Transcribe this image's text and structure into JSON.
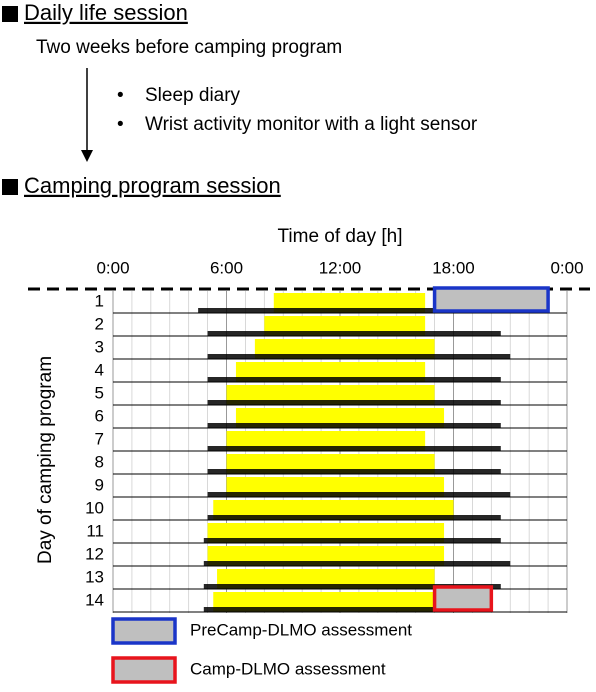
{
  "header": {
    "daily_title": "Daily life session",
    "daily_subtitle": "Two weeks before camping program",
    "bullets": [
      "Sleep diary",
      "Wrist activity monitor with a light sensor"
    ],
    "camp_title": "Camping program session"
  },
  "chart_data": {
    "type": "actogram",
    "title": "Time of day [h]",
    "ylabel": "Day of camping program",
    "xlim": [
      0,
      24
    ],
    "xticks": [
      {
        "value": 0,
        "label": "0:00"
      },
      {
        "value": 6,
        "label": "6:00"
      },
      {
        "value": 12,
        "label": "12:00"
      },
      {
        "value": 18,
        "label": "18:00"
      },
      {
        "value": 24,
        "label": "0:00"
      }
    ],
    "categories": [
      "1",
      "2",
      "3",
      "4",
      "5",
      "6",
      "7",
      "8",
      "9",
      "10",
      "11",
      "12",
      "13",
      "14"
    ],
    "light": [
      [
        8.5,
        16.5
      ],
      [
        8,
        16.5
      ],
      [
        7.5,
        17
      ],
      [
        6.5,
        16.5
      ],
      [
        6,
        17
      ],
      [
        6.5,
        17.5
      ],
      [
        6,
        16.5
      ],
      [
        6,
        17
      ],
      [
        6,
        17.5
      ],
      [
        5.3,
        18
      ],
      [
        5,
        17.5
      ],
      [
        5,
        17.5
      ],
      [
        5.5,
        17
      ],
      [
        5.3,
        17
      ]
    ],
    "activity": [
      [
        4.5,
        20
      ],
      [
        5,
        20.5
      ],
      [
        5,
        21
      ],
      [
        5,
        20.5
      ],
      [
        5,
        20.5
      ],
      [
        5,
        20.5
      ],
      [
        5,
        20.5
      ],
      [
        5,
        20.5
      ],
      [
        5,
        21
      ],
      [
        5,
        20.5
      ],
      [
        4.8,
        20.5
      ],
      [
        4.8,
        21
      ],
      [
        4.8,
        20.5
      ],
      [
        4.8,
        20
      ]
    ],
    "light_color": "#ffff00",
    "activity_color": "#000000",
    "assessments": [
      {
        "name": "PreCamp-DLMO assessment",
        "day": "1",
        "hours": [
          17,
          23
        ],
        "color": "#1a35c8"
      },
      {
        "name": "Camp-DLMO assessment",
        "day": "14",
        "hours": [
          17,
          20
        ],
        "color": "#e8141c"
      }
    ]
  }
}
